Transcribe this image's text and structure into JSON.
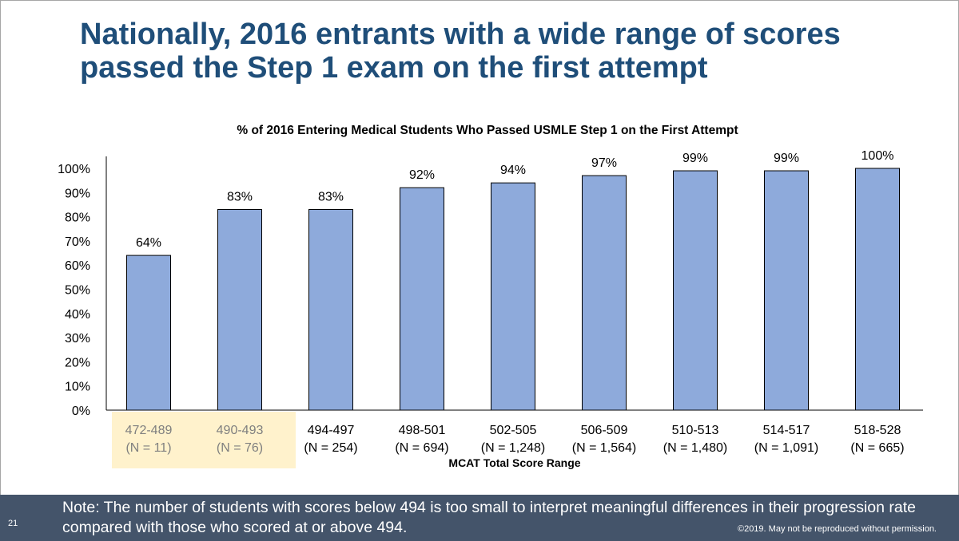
{
  "title": "Nationally, 2016 entrants with a wide range of scores passed the Step 1 exam on the first attempt",
  "chart_data": {
    "type": "bar",
    "title": "% of 2016 Entering Medical Students Who Passed USMLE Step 1 on the First Attempt",
    "xlabel": "MCAT Total Score Range",
    "ylabel": "",
    "ylim": [
      0,
      100
    ],
    "yticks": [
      "0%",
      "10%",
      "20%",
      "30%",
      "40%",
      "50%",
      "60%",
      "70%",
      "80%",
      "90%",
      "100%"
    ],
    "categories": [
      "472-489",
      "490-493",
      "494-497",
      "498-501",
      "502-505",
      "506-509",
      "510-513",
      "514-517",
      "518-528"
    ],
    "n_labels": [
      "(N = 11)",
      "(N = 76)",
      "(N = 254)",
      "(N = 694)",
      "(N = 1,248)",
      "(N = 1,564)",
      "(N = 1,480)",
      "(N = 1,091)",
      "(N = 665)"
    ],
    "values": [
      64,
      83,
      83,
      92,
      94,
      97,
      99,
      99,
      100
    ],
    "value_labels": [
      "64%",
      "83%",
      "83%",
      "92%",
      "94%",
      "97%",
      "99%",
      "99%",
      "100%"
    ],
    "highlighted_categories": [
      "472-489",
      "490-493"
    ],
    "grid": false,
    "colors": {
      "bar": "#8eaadb",
      "bar_edge": "#000000",
      "highlight": "#fff2cc",
      "highlight_text": "#7f7f7f"
    }
  },
  "footer": {
    "page_number": "21",
    "note": "Note: The number of students with scores below 494 is too small to interpret meaningful differences in their progression rate compared with those who scored at or above 494.",
    "copyright": "©2019. May not be reproduced without permission."
  }
}
